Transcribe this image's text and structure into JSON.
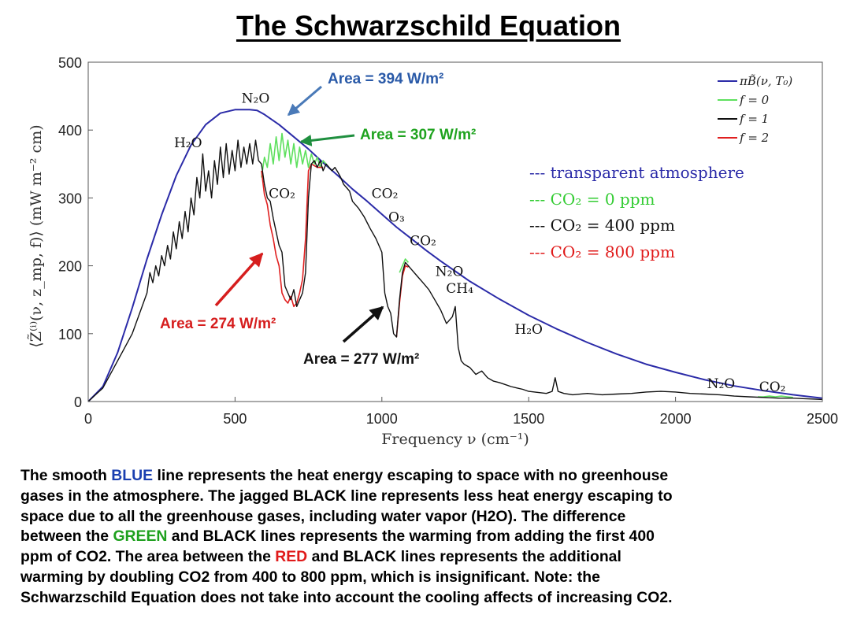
{
  "title": "The Schwarzschild Equation",
  "chart_data": {
    "type": "line",
    "xlabel": "Frequency ν (cm⁻¹)",
    "ylabel": "⟨Z̃⁽ⁱ⁾(ν, z_mp, f)⟩ (mW m⁻² cm)",
    "xlim": [
      0,
      2500
    ],
    "ylim": [
      0,
      500
    ],
    "xticks": [
      0,
      500,
      1000,
      1500,
      2000,
      2500
    ],
    "yticks": [
      0,
      100,
      200,
      300,
      400,
      500
    ],
    "grid": false,
    "legend_position": "top-right",
    "legend": [
      "πB̃(ν, T₀)",
      "f = 0",
      "f = 1",
      "f = 2"
    ],
    "series": [
      {
        "name": "πB̃(ν, T₀)",
        "color": "#2b2ba8",
        "x": [
          0,
          50,
          100,
          150,
          200,
          250,
          300,
          350,
          400,
          450,
          500,
          550,
          575,
          600,
          650,
          700,
          750,
          800,
          850,
          900,
          950,
          1000,
          1050,
          1100,
          1150,
          1200,
          1250,
          1300,
          1400,
          1500,
          1600,
          1700,
          1800,
          1900,
          2000,
          2100,
          2200,
          2300,
          2400,
          2500
        ],
        "y": [
          0,
          22,
          72,
          138,
          210,
          275,
          333,
          378,
          408,
          425,
          430,
          430,
          429,
          423,
          408,
          390,
          372,
          352,
          333,
          313,
          295,
          276,
          257,
          240,
          223,
          207,
          192,
          177,
          151,
          127,
          106,
          87,
          70,
          55,
          43,
          32,
          23,
          16,
          10,
          5
        ]
      },
      {
        "name": "f = 0",
        "color": "#5ee05e",
        "x": [
          590,
          600,
          610,
          620,
          630,
          640,
          650,
          660,
          670,
          680,
          690,
          700,
          710,
          720,
          730,
          740,
          750,
          760,
          770,
          780,
          790,
          800,
          810,
          820,
          1060,
          1070,
          1080,
          1090,
          2280,
          2300,
          2320,
          2340,
          2360,
          2380,
          2400
        ],
        "y": [
          330,
          360,
          345,
          380,
          350,
          390,
          355,
          395,
          360,
          385,
          350,
          380,
          345,
          375,
          350,
          370,
          345,
          365,
          350,
          360,
          345,
          355,
          350,
          345,
          190,
          200,
          210,
          205,
          7,
          7,
          8,
          7,
          8,
          7,
          6
        ]
      },
      {
        "name": "f = 1",
        "color": "#111111",
        "x": [
          0,
          50,
          100,
          150,
          200,
          210,
          220,
          230,
          240,
          250,
          260,
          270,
          280,
          290,
          300,
          310,
          320,
          330,
          340,
          350,
          360,
          370,
          380,
          390,
          400,
          410,
          420,
          430,
          440,
          450,
          460,
          470,
          480,
          490,
          500,
          510,
          520,
          530,
          540,
          550,
          560,
          570,
          580,
          590,
          600,
          610,
          620,
          630,
          640,
          650,
          660,
          670,
          680,
          690,
          700,
          710,
          720,
          730,
          740,
          750,
          760,
          770,
          780,
          790,
          800,
          810,
          820,
          830,
          840,
          850,
          860,
          870,
          880,
          890,
          900,
          920,
          940,
          960,
          980,
          1000,
          1010,
          1020,
          1030,
          1040,
          1050,
          1060,
          1070,
          1080,
          1090,
          1100,
          1120,
          1140,
          1160,
          1180,
          1200,
          1220,
          1240,
          1250,
          1260,
          1270,
          1280,
          1300,
          1320,
          1340,
          1360,
          1380,
          1400,
          1420,
          1440,
          1460,
          1480,
          1500,
          1520,
          1540,
          1560,
          1580,
          1590,
          1600,
          1620,
          1650,
          1700,
          1750,
          1800,
          1850,
          1900,
          1950,
          2000,
          2050,
          2100,
          2150,
          2200,
          2250,
          2300,
          2350,
          2400,
          2450,
          2500
        ],
        "y": [
          0,
          20,
          60,
          100,
          160,
          190,
          175,
          200,
          185,
          215,
          200,
          230,
          210,
          250,
          225,
          265,
          240,
          280,
          250,
          300,
          275,
          330,
          300,
          365,
          310,
          340,
          300,
          355,
          320,
          375,
          330,
          380,
          335,
          370,
          340,
          385,
          345,
          375,
          350,
          380,
          350,
          385,
          355,
          350,
          320,
          300,
          295,
          270,
          250,
          230,
          220,
          170,
          160,
          150,
          165,
          140,
          150,
          160,
          190,
          300,
          350,
          355,
          345,
          355,
          340,
          350,
          345,
          340,
          345,
          338,
          330,
          320,
          315,
          310,
          295,
          285,
          272,
          255,
          240,
          220,
          160,
          140,
          130,
          100,
          95,
          150,
          190,
          205,
          200,
          195,
          185,
          175,
          165,
          150,
          135,
          115,
          125,
          140,
          80,
          60,
          55,
          50,
          40,
          45,
          35,
          30,
          28,
          25,
          22,
          20,
          18,
          15,
          14,
          13,
          12,
          15,
          35,
          15,
          12,
          10,
          12,
          10,
          11,
          12,
          14,
          15,
          14,
          12,
          11,
          10,
          8,
          7,
          6,
          5,
          5,
          4,
          3
        ]
      },
      {
        "name": "f = 2",
        "color": "#e02020",
        "x": [
          590,
          600,
          610,
          620,
          630,
          640,
          650,
          660,
          670,
          680,
          690,
          700,
          710,
          720,
          730,
          740,
          750,
          760,
          780,
          800,
          1050,
          1060,
          1070,
          1080,
          1090
        ],
        "y": [
          340,
          305,
          290,
          260,
          240,
          215,
          200,
          160,
          150,
          145,
          155,
          140,
          145,
          160,
          180,
          240,
          340,
          350,
          345,
          345,
          95,
          145,
          185,
          200,
          198
        ]
      }
    ],
    "scenarios": [
      {
        "label": "--- transparent atmosphere",
        "color": "#2b2ba8"
      },
      {
        "label": "--- CO₂ = 0 ppm",
        "color": "#33cc33"
      },
      {
        "label": "--- CO₂ = 400 ppm",
        "color": "#111111"
      },
      {
        "label": "--- CO₂ = 800 ppm",
        "color": "#e01a1a"
      }
    ],
    "annotations": [
      {
        "text": "N₂O",
        "x": 570,
        "y": 440
      },
      {
        "text": "H₂O",
        "x": 340,
        "y": 375
      },
      {
        "text": "CO₂",
        "x": 660,
        "y": 300
      },
      {
        "text": "CO₂",
        "x": 1010,
        "y": 300
      },
      {
        "text": "O₃",
        "x": 1050,
        "y": 265
      },
      {
        "text": "CO₂",
        "x": 1140,
        "y": 230
      },
      {
        "text": "N₂O",
        "x": 1230,
        "y": 185
      },
      {
        "text": "CH₄",
        "x": 1265,
        "y": 160
      },
      {
        "text": "H₂O",
        "x": 1500,
        "y": 100
      },
      {
        "text": "N₂O",
        "x": 2155,
        "y": 20
      },
      {
        "text": "CO₂",
        "x": 2330,
        "y": 15
      }
    ],
    "area_labels": [
      {
        "text": "Area = 394 W/m²",
        "color": "#2a5aa8"
      },
      {
        "text": "Area = 307 W/m²",
        "color": "#1fa31f"
      },
      {
        "text": "Area = 274 W/m²",
        "color": "#d61e1e"
      },
      {
        "text": "Area = 277 W/m²",
        "color": "#111111"
      }
    ]
  },
  "caption": {
    "line1_a": "The smooth ",
    "line1_blue": "BLUE",
    "line1_b": " line represents the heat energy escaping to space with no greenhouse",
    "line2": "gases in the atmosphere.  The jagged BLACK line represents less heat energy escaping to",
    "line3": "space due to all the greenhouse gases, including water vapor (H2O).  The difference",
    "line4_a": "between the ",
    "line4_green": "GREEN",
    "line4_b": " and BLACK lines represents the warming from adding the first 400",
    "line5_a": "ppm of CO2.  The area between the ",
    "line5_red": "RED",
    "line5_b": " and BLACK lines represents the additional",
    "line6": "warming by doubling CO2 from 400 to 800 ppm, which is insignificant.  Note: the",
    "line7": "Schwarzschild Equation does not take into account the cooling affects of increasing CO2."
  }
}
